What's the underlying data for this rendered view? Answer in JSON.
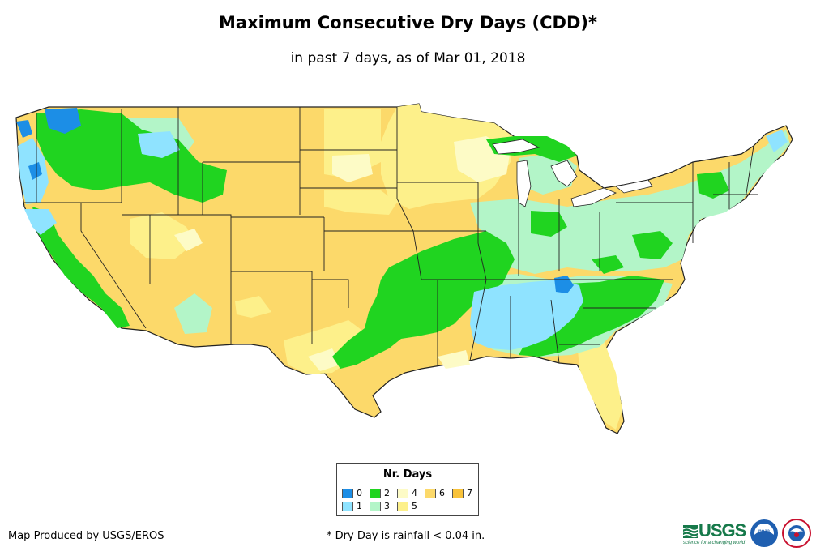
{
  "header": {
    "title": "Maximum Consecutive Dry Days (CDD)*",
    "subtitle": "in past 7 days, as of Mar 01, 2018"
  },
  "legend": {
    "title": "Nr. Days",
    "items": [
      {
        "label": "0",
        "color": "#1c8ee6"
      },
      {
        "label": "1",
        "color": "#8fe3ff"
      },
      {
        "label": "2",
        "color": "#20d420"
      },
      {
        "label": "3",
        "color": "#b3f5c8"
      },
      {
        "label": "4",
        "color": "#fdfbc6"
      },
      {
        "label": "5",
        "color": "#fdf08a"
      },
      {
        "label": "6",
        "color": "#fcd96a"
      },
      {
        "label": "7",
        "color": "#f8c23a"
      }
    ]
  },
  "footer": {
    "credit": "Map Produced by USGS/EROS",
    "footnote": "* Dry Day is rainfall < 0.04 in."
  },
  "logos": {
    "usgs_text": "USGS",
    "usgs_tagline": "science for a changing world",
    "noaa_text": "noaa"
  },
  "colors": {
    "state_border": "#222222",
    "usgs_green": "#16794a",
    "noaa_blue": "#1f5fb0"
  }
}
